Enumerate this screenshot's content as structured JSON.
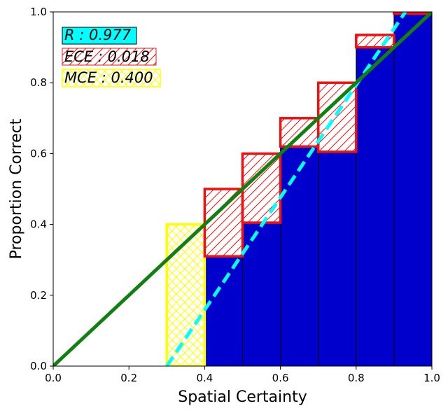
{
  "chart_data": {
    "type": "bar",
    "xlabel": "Spatial Certainty",
    "ylabel": "Proportion Correct",
    "xlim": [
      0.0,
      1.0
    ],
    "ylim": [
      0.0,
      1.0
    ],
    "xticks": [
      "0.0",
      "0.2",
      "0.4",
      "0.6",
      "0.8",
      "1.0"
    ],
    "yticks": [
      "0.0",
      "0.2",
      "0.4",
      "0.6",
      "0.8",
      "1.0"
    ],
    "grid": false,
    "bins": [
      {
        "lo": 0.3,
        "hi": 0.4,
        "accuracy": 0.0,
        "confidence": 0.4
      },
      {
        "lo": 0.4,
        "hi": 0.5,
        "accuracy": 0.31,
        "confidence": 0.5
      },
      {
        "lo": 0.5,
        "hi": 0.6,
        "accuracy": 0.405,
        "confidence": 0.6
      },
      {
        "lo": 0.6,
        "hi": 0.7,
        "accuracy": 0.62,
        "confidence": 0.7
      },
      {
        "lo": 0.7,
        "hi": 0.8,
        "accuracy": 0.605,
        "confidence": 0.8
      },
      {
        "lo": 0.8,
        "hi": 0.9,
        "accuracy": 0.9,
        "confidence": 0.935
      },
      {
        "lo": 0.9,
        "hi": 1.0,
        "accuracy": 1.0,
        "confidence": 0.995
      }
    ],
    "identity_line": {
      "x": [
        0.0,
        1.0
      ],
      "y": [
        0.0,
        1.0
      ],
      "color": "#118011"
    },
    "fit_line": {
      "x": [
        0.3,
        0.93
      ],
      "y": [
        0.0,
        1.0
      ],
      "color": "#00ffff"
    },
    "colors": {
      "accuracy_bar": "#0000cc",
      "gap_outline": "#ee1111",
      "max_gap_outline": "#ffff00",
      "r_box": "#00ffff"
    },
    "metrics": {
      "r": "R : 0.977",
      "ece": "ECE : 0.018",
      "mce": "MCE : 0.400"
    }
  }
}
